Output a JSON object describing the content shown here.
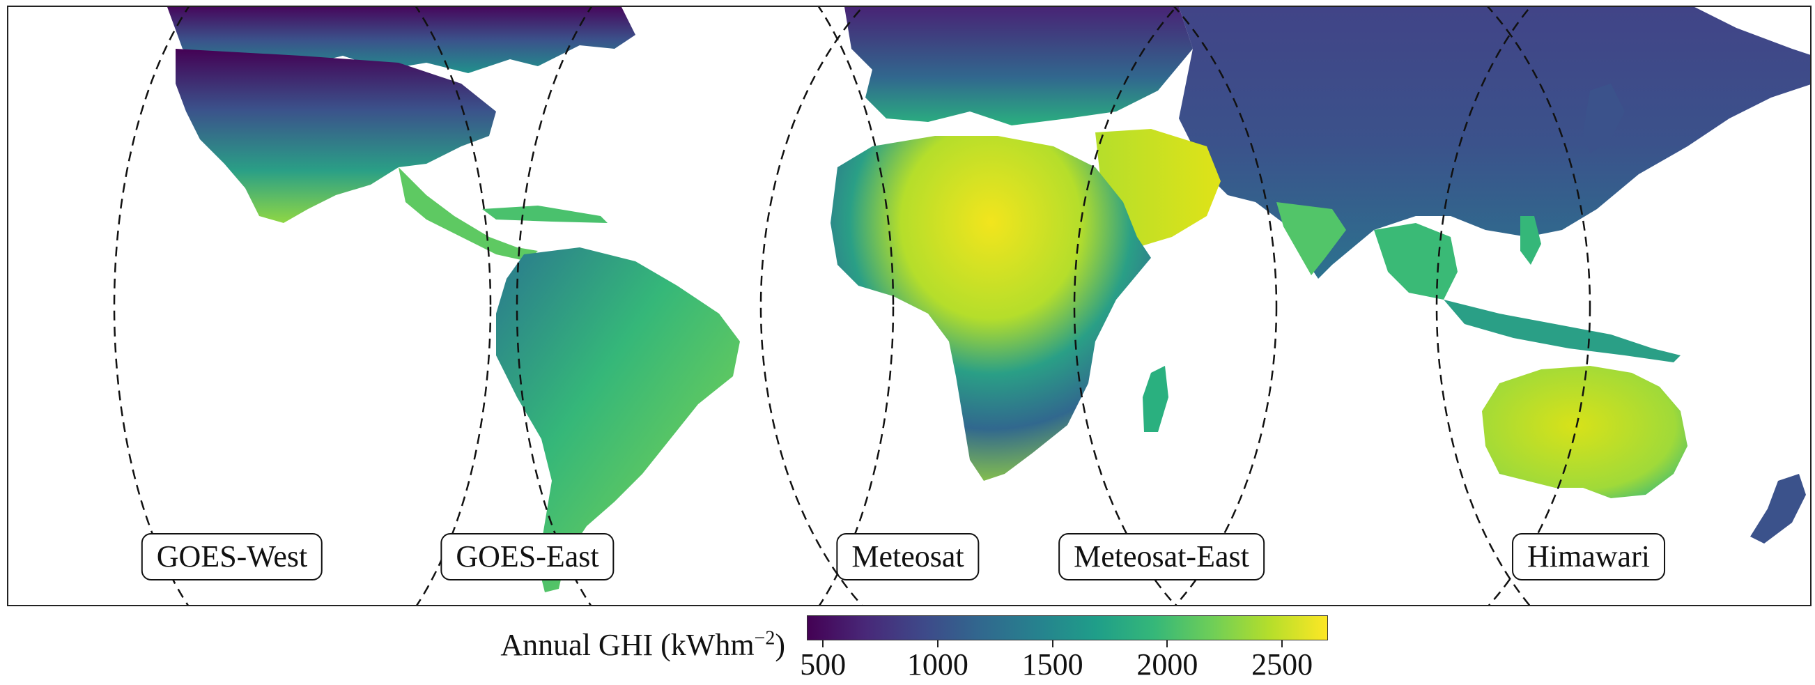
{
  "map": {
    "satellite_labels": [
      {
        "name": "GOES-West"
      },
      {
        "name": "GOES-East"
      },
      {
        "name": "Meteosat"
      },
      {
        "name": "Meteosat-East"
      },
      {
        "name": "Himawari"
      }
    ],
    "palette": [
      "#440154",
      "#482878",
      "#3e4989",
      "#31688e",
      "#26828e",
      "#1f9e89",
      "#35b779",
      "#6ece58",
      "#b5de2b",
      "#fde725"
    ]
  },
  "colorbar": {
    "title": "Annual GHI (kWhm",
    "title_superscript": "−2",
    "title_suffix": ")",
    "ticks": [
      "500",
      "1000",
      "1500",
      "2000",
      "2500"
    ],
    "range": [
      430,
      2700
    ],
    "colormap": "viridis"
  }
}
